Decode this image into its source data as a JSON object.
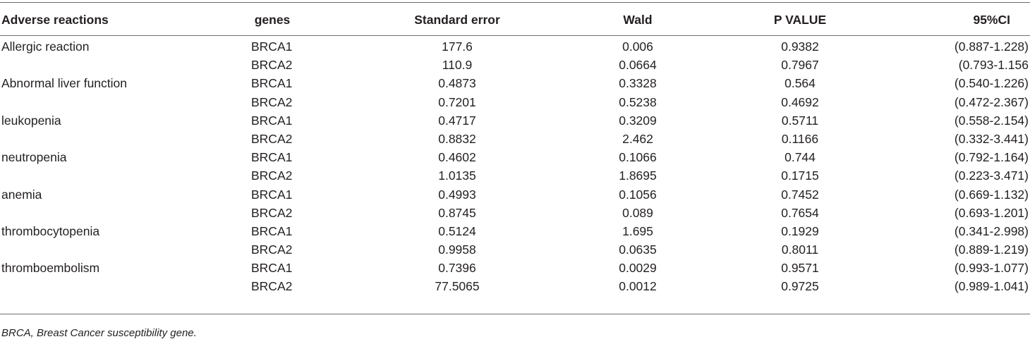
{
  "table": {
    "headers": {
      "reaction": "Adverse reactions",
      "gene": "genes",
      "se": "Standard error",
      "wald": "Wald",
      "p": "P VALUE",
      "ci": "95%CI"
    },
    "rows": [
      {
        "reaction": "Allergic reaction",
        "gene": "BRCA1",
        "se": "177.6",
        "wald": "0.006",
        "p": "0.9382",
        "ci": "(0.887-1.228)"
      },
      {
        "reaction": "",
        "gene": "BRCA2",
        "se": "110.9",
        "wald": "0.0664",
        "p": "0.7967",
        "ci": "(0.793-1.156"
      },
      {
        "reaction": "Abnormal liver function",
        "gene": "BRCA1",
        "se": "0.4873",
        "wald": "0.3328",
        "p": "0.564",
        "ci": "(0.540-1.226)"
      },
      {
        "reaction": "",
        "gene": "BRCA2",
        "se": "0.7201",
        "wald": "0.5238",
        "p": "0.4692",
        "ci": "(0.472-2.367)"
      },
      {
        "reaction": "leukopenia",
        "gene": "BRCA1",
        "se": "0.4717",
        "wald": "0.3209",
        "p": "0.5711",
        "ci": "(0.558-2.154)"
      },
      {
        "reaction": "",
        "gene": "BRCA2",
        "se": "0.8832",
        "wald": "2.462",
        "p": "0.1166",
        "ci": "(0.332-3.441)"
      },
      {
        "reaction": "neutropenia",
        "gene": "BRCA1",
        "se": "0.4602",
        "wald": "0.1066",
        "p": "0.744",
        "ci": "(0.792-1.164)"
      },
      {
        "reaction": "",
        "gene": "BRCA2",
        "se": "1.0135",
        "wald": "1.8695",
        "p": "0.1715",
        "ci": "(0.223-3.471)"
      },
      {
        "reaction": "anemia",
        "gene": "BRCA1",
        "se": "0.4993",
        "wald": "0.1056",
        "p": "0.7452",
        "ci": "(0.669-1.132)"
      },
      {
        "reaction": "",
        "gene": "BRCA2",
        "se": "0.8745",
        "wald": "0.089",
        "p": "0.7654",
        "ci": "(0.693-1.201)"
      },
      {
        "reaction": "thrombocytopenia",
        "gene": "BRCA1",
        "se": "0.5124",
        "wald": "1.695",
        "p": "0.1929",
        "ci": "(0.341-2.998)"
      },
      {
        "reaction": "",
        "gene": "BRCA2",
        "se": "0.9958",
        "wald": "0.0635",
        "p": "0.8011",
        "ci": "(0.889-1.219)"
      },
      {
        "reaction": "thromboembolism",
        "gene": "BRCA1",
        "se": "0.7396",
        "wald": "0.0029",
        "p": "0.9571",
        "ci": "(0.993-1.077)"
      },
      {
        "reaction": "",
        "gene": "BRCA2",
        "se": "77.5065",
        "wald": "0.0012",
        "p": "0.9725",
        "ci": "(0.989-1.041)"
      }
    ],
    "footnote": "BRCA, Breast Cancer susceptibility gene."
  }
}
